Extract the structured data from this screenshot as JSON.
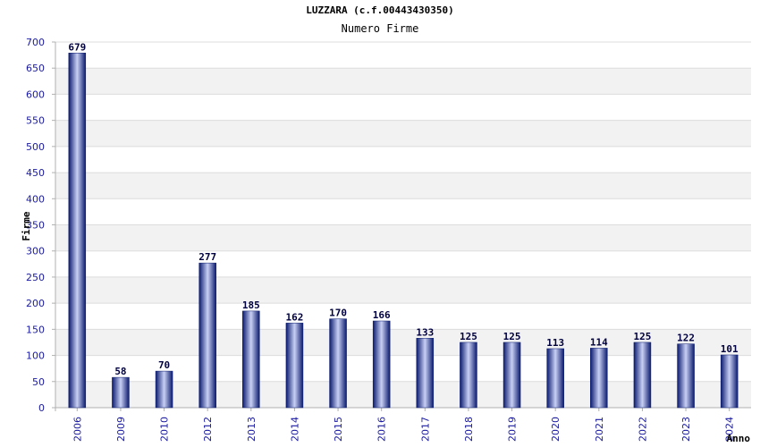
{
  "chart_data": {
    "type": "bar",
    "title": "LUZZARA (c.f.00443430350)",
    "subtitle": "Numero Firme",
    "ylabel": "Firme",
    "xlabel": "Anno",
    "categories": [
      "2006",
      "2009",
      "2010",
      "2012",
      "2013",
      "2014",
      "2015",
      "2016",
      "2017",
      "2018",
      "2019",
      "2020",
      "2021",
      "2022",
      "2023",
      "2024"
    ],
    "values": [
      679,
      58,
      70,
      277,
      185,
      162,
      170,
      166,
      133,
      125,
      125,
      113,
      114,
      125,
      122,
      101
    ],
    "ylim": [
      0,
      700
    ],
    "yticks": [
      0,
      50,
      100,
      150,
      200,
      250,
      300,
      350,
      400,
      450,
      500,
      550,
      600,
      650,
      700
    ],
    "grid": true,
    "colors": {
      "bar_dark": "#0a1a6e",
      "bar_light": "#c8d0f4",
      "band": "#f2f2f2",
      "tick": "#1a1aa0"
    }
  }
}
